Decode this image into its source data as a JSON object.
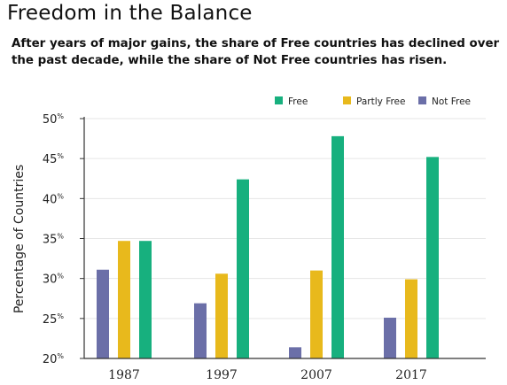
{
  "chart_data": {
    "type": "bar",
    "title": "Freedom in the Balance",
    "subtitle": "After years of major gains, the share of Free countries has declined over the past decade, while the share of Not Free countries has risen.",
    "xlabel": "",
    "ylabel": "Percentage of Countries",
    "ylim": [
      20,
      50
    ],
    "yticks": [
      20,
      25,
      30,
      35,
      40,
      45,
      50
    ],
    "tick_suffix": "%",
    "grid": true,
    "legend_position": "top-right",
    "categories": [
      "1987",
      "1997",
      "2007",
      "2017"
    ],
    "series": [
      {
        "name": "Not Free",
        "color": "#6b6fa8",
        "values": [
          31.1,
          26.9,
          21.4,
          25.1
        ]
      },
      {
        "name": "Partly Free",
        "color": "#e8b91c",
        "values": [
          34.7,
          30.6,
          31.0,
          29.9
        ]
      },
      {
        "name": "Free",
        "color": "#17b07e",
        "values": [
          34.7,
          42.4,
          47.8,
          45.2
        ]
      }
    ],
    "legend_order": [
      "Free",
      "Partly Free",
      "Not Free"
    ]
  }
}
